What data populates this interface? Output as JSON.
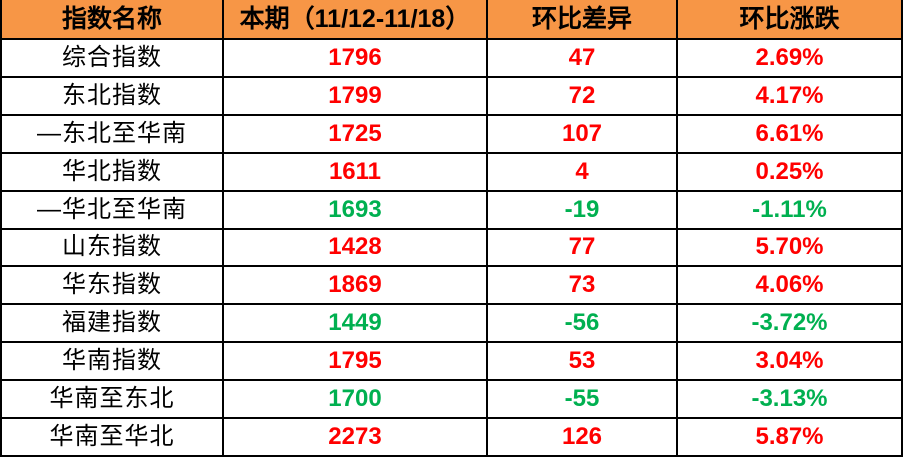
{
  "table": {
    "columns": [
      "指数名称",
      "本期（11/12-11/18）",
      "环比差异",
      "环比涨跌"
    ],
    "rows": [
      {
        "name": "综合指数",
        "current": "1796",
        "diff": "47",
        "pct": "2.69%",
        "trend": "up"
      },
      {
        "name": "东北指数",
        "current": "1799",
        "diff": "72",
        "pct": "4.17%",
        "trend": "up"
      },
      {
        "name": "—东北至华南",
        "current": "1725",
        "diff": "107",
        "pct": "6.61%",
        "trend": "up"
      },
      {
        "name": "华北指数",
        "current": "1611",
        "diff": "4",
        "pct": "0.25%",
        "trend": "up"
      },
      {
        "name": "—华北至华南",
        "current": "1693",
        "diff": "-19",
        "pct": "-1.11%",
        "trend": "down"
      },
      {
        "name": "山东指数",
        "current": "1428",
        "diff": "77",
        "pct": "5.70%",
        "trend": "up"
      },
      {
        "name": "华东指数",
        "current": "1869",
        "diff": "73",
        "pct": "4.06%",
        "trend": "up"
      },
      {
        "name": "福建指数",
        "current": "1449",
        "diff": "-56",
        "pct": "-3.72%",
        "trend": "down"
      },
      {
        "name": "华南指数",
        "current": "1795",
        "diff": "53",
        "pct": "3.04%",
        "trend": "up"
      },
      {
        "name": "华南至东北",
        "current": "1700",
        "diff": "-55",
        "pct": "-3.13%",
        "trend": "down"
      },
      {
        "name": "华南至华北",
        "current": "2273",
        "diff": "126",
        "pct": "5.87%",
        "trend": "up"
      }
    ]
  },
  "colors": {
    "header_bg": "#F79646",
    "up": "#FF0000",
    "down": "#00B050",
    "border": "#000000"
  },
  "chart_data": {
    "type": "table",
    "title": "",
    "columns": [
      "指数名称",
      "本期（11/12-11/18）",
      "环比差异",
      "环比涨跌"
    ],
    "categories": [
      "综合指数",
      "东北指数",
      "—东北至华南",
      "华北指数",
      "—华北至华南",
      "山东指数",
      "华东指数",
      "福建指数",
      "华南指数",
      "华南至东北",
      "华南至华北"
    ],
    "series": [
      {
        "name": "本期（11/12-11/18）",
        "values": [
          1796,
          1799,
          1725,
          1611,
          1693,
          1428,
          1869,
          1449,
          1795,
          1700,
          2273
        ]
      },
      {
        "name": "环比差异",
        "values": [
          47,
          72,
          107,
          4,
          -19,
          77,
          73,
          -56,
          53,
          -55,
          126
        ]
      },
      {
        "name": "环比涨跌",
        "values": [
          "2.69%",
          "4.17%",
          "6.61%",
          "0.25%",
          "-1.11%",
          "5.70%",
          "4.06%",
          "-3.72%",
          "3.04%",
          "-3.13%",
          "5.87%"
        ]
      }
    ],
    "layout_hints": {
      "header_background": "#F79646",
      "positive_color": "#FF0000",
      "negative_color": "#00B050",
      "grid": true
    }
  }
}
